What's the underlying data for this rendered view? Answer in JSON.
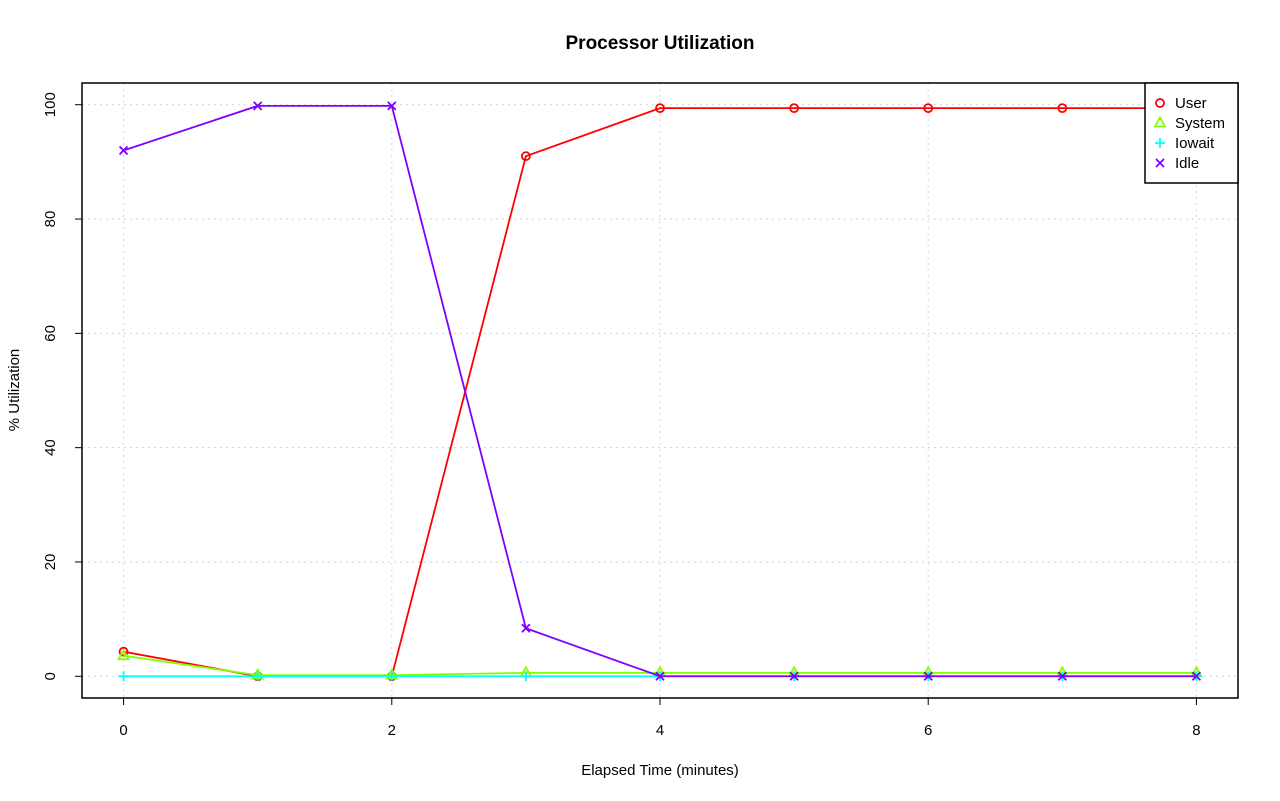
{
  "chart_data": {
    "type": "line",
    "title": "Processor Utilization",
    "xlabel": "Elapsed Time (minutes)",
    "ylabel": "% Utilization",
    "x": [
      0,
      1,
      2,
      3,
      4,
      5,
      6,
      7,
      8
    ],
    "xlim": [
      -0.31,
      8.31
    ],
    "ylim": [
      -3.8,
      103.8
    ],
    "xticks": [
      0,
      2,
      4,
      6,
      8
    ],
    "yticks": [
      0,
      20,
      40,
      60,
      80,
      100
    ],
    "grid": true,
    "legend_position": "top-right",
    "series": [
      {
        "name": "User",
        "color": "#ff0000",
        "marker": "circle",
        "values": [
          4.3,
          0.0,
          0.0,
          91.0,
          99.4,
          99.4,
          99.4,
          99.4,
          99.4
        ]
      },
      {
        "name": "System",
        "color": "#80ff00",
        "marker": "triangle",
        "values": [
          3.6,
          0.2,
          0.2,
          0.6,
          0.6,
          0.6,
          0.6,
          0.6,
          0.6
        ]
      },
      {
        "name": "Iowait",
        "color": "#00ffff",
        "marker": "plus",
        "values": [
          0.0,
          0.0,
          0.0,
          0.0,
          0.0,
          0.0,
          0.0,
          0.0,
          0.0
        ]
      },
      {
        "name": "Idle",
        "color": "#8000ff",
        "marker": "cross",
        "values": [
          92.0,
          99.8,
          99.8,
          8.4,
          0.0,
          0.0,
          0.0,
          0.0,
          0.0
        ]
      }
    ]
  }
}
